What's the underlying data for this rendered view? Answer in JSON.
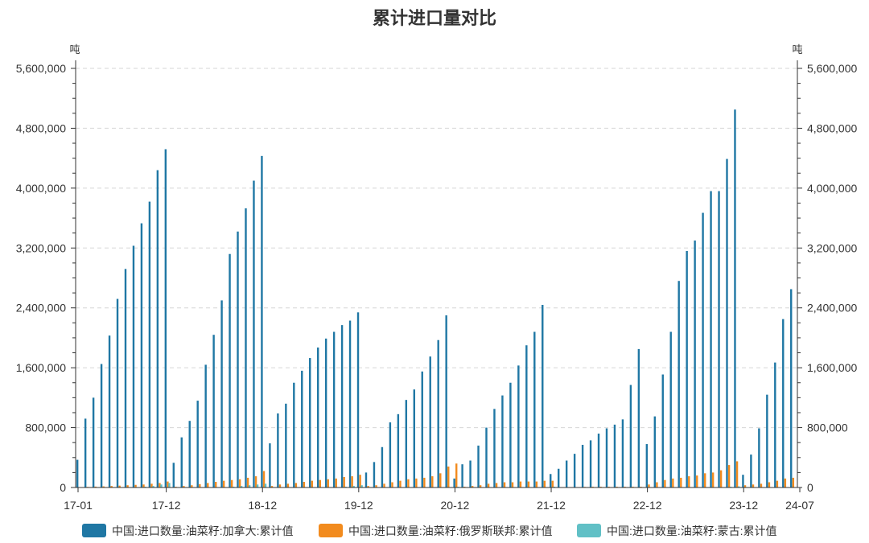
{
  "chart_data": {
    "type": "bar",
    "title": "累计进口量对比",
    "y_unit_left": "吨",
    "y_unit_right": "吨",
    "ylim": [
      0,
      5600000
    ],
    "y_ticks": [
      "0",
      "800,000",
      "1,600,000",
      "2,400,000",
      "3,200,000",
      "4,000,000",
      "4,800,000",
      "5,600,000"
    ],
    "x_tick_labels": [
      "17-01",
      "17-12",
      "18-12",
      "19-12",
      "20-12",
      "21-12",
      "22-12",
      "23-12",
      "24-07"
    ],
    "grid": "horizontal dashed",
    "legend_position": "bottom",
    "x_start": "2017-01",
    "series": [
      {
        "name": "中国:进口数量:油菜籽:加拿大:累计值",
        "color": "#1f77a4",
        "values": [
          370000,
          920000,
          1200000,
          1650000,
          2030000,
          2520000,
          2920000,
          3230000,
          3530000,
          3820000,
          4240000,
          4520000,
          330000,
          670000,
          890000,
          1160000,
          1640000,
          2040000,
          2500000,
          3120000,
          3420000,
          3730000,
          4100000,
          4430000,
          590000,
          990000,
          1120000,
          1400000,
          1560000,
          1730000,
          1870000,
          1990000,
          2080000,
          2170000,
          2230000,
          2340000,
          200000,
          340000,
          540000,
          870000,
          980000,
          1170000,
          1310000,
          1550000,
          1750000,
          1970000,
          2300000,
          120000,
          310000,
          360000,
          560000,
          800000,
          1050000,
          1230000,
          1400000,
          1630000,
          1900000,
          2080000,
          2440000,
          180000,
          250000,
          360000,
          450000,
          570000,
          630000,
          720000,
          790000,
          840000,
          910000,
          1370000,
          1850000,
          580000,
          950000,
          1510000,
          2080000,
          2760000,
          3160000,
          3300000,
          3670000,
          3960000,
          3960000,
          4390000,
          5050000,
          170000,
          440000,
          790000,
          1240000,
          1670000,
          2250000,
          2650000
        ]
      },
      {
        "name": "中国:进口数量:油菜籽:俄罗斯联邦:累计值",
        "color": "#f28b1e",
        "values": [
          5000,
          8000,
          12000,
          15000,
          20000,
          25000,
          30000,
          35000,
          40000,
          50000,
          60000,
          80000,
          10000,
          20000,
          30000,
          45000,
          60000,
          75000,
          90000,
          100000,
          110000,
          130000,
          150000,
          220000,
          20000,
          40000,
          50000,
          60000,
          75000,
          90000,
          100000,
          110000,
          120000,
          140000,
          150000,
          170000,
          20000,
          30000,
          50000,
          70000,
          90000,
          110000,
          120000,
          130000,
          150000,
          190000,
          280000,
          320000,
          10000,
          20000,
          30000,
          50000,
          60000,
          70000,
          70000,
          80000,
          80000,
          80000,
          90000,
          90000,
          5000,
          5000,
          5000,
          8000,
          10000,
          10000,
          10000,
          10000,
          10000,
          10000,
          10000,
          40000,
          70000,
          100000,
          120000,
          130000,
          150000,
          160000,
          190000,
          200000,
          230000,
          300000,
          350000,
          30000,
          40000,
          50000,
          70000,
          90000,
          120000,
          130000
        ]
      },
      {
        "name": "中国:进口数量:油菜籽:蒙古:累计值",
        "color": "#61c0c6",
        "values": [
          0,
          0,
          0,
          0,
          0,
          0,
          0,
          5000,
          10000,
          20000,
          40000,
          60000,
          0,
          0,
          0,
          0,
          0,
          0,
          5000,
          10000,
          20000,
          30000,
          40000,
          50000,
          0,
          0,
          0,
          0,
          0,
          0,
          0,
          0,
          5000,
          10000,
          20000,
          30000,
          0,
          0,
          0,
          0,
          0,
          0,
          0,
          0,
          0,
          0,
          5000,
          10000,
          0,
          0,
          0,
          0,
          0,
          0,
          0,
          0,
          0,
          0,
          5000,
          10000,
          0,
          0,
          0,
          0,
          0,
          0,
          0,
          0,
          0,
          0,
          0,
          5000,
          0,
          0,
          0,
          0,
          0,
          0,
          0,
          0,
          5000,
          10000,
          15000,
          0,
          0,
          0,
          0,
          0,
          0,
          5000
        ]
      }
    ]
  }
}
